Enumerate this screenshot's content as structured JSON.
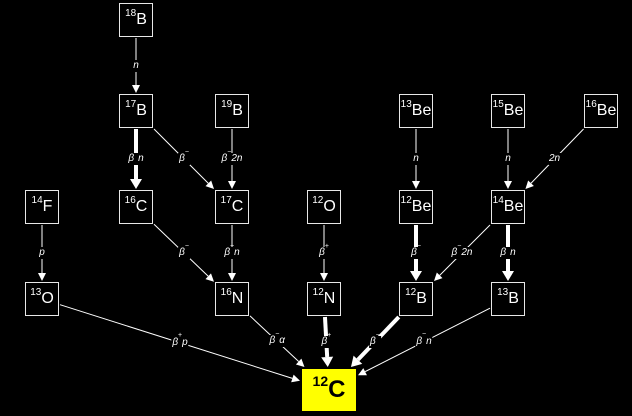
{
  "nodes": {
    "b18": {
      "mass": "18",
      "el": "B"
    },
    "b17": {
      "mass": "17",
      "el": "B"
    },
    "b19": {
      "mass": "19",
      "el": "B"
    },
    "be13": {
      "mass": "13",
      "el": "Be"
    },
    "be15": {
      "mass": "15",
      "el": "Be"
    },
    "be16": {
      "mass": "16",
      "el": "Be"
    },
    "f14": {
      "mass": "14",
      "el": "F"
    },
    "c16": {
      "mass": "16",
      "el": "C"
    },
    "c17": {
      "mass": "17",
      "el": "C"
    },
    "o12": {
      "mass": "12",
      "el": "O"
    },
    "be12": {
      "mass": "12",
      "el": "Be"
    },
    "be14": {
      "mass": "14",
      "el": "Be"
    },
    "o13": {
      "mass": "13",
      "el": "O"
    },
    "n16": {
      "mass": "16",
      "el": "N"
    },
    "n12": {
      "mass": "12",
      "el": "N"
    },
    "b12": {
      "mass": "12",
      "el": "B"
    },
    "b13": {
      "mass": "13",
      "el": "B"
    },
    "c12": {
      "mass": "12",
      "el": "C"
    }
  },
  "edges": [
    {
      "from": "b18",
      "to": "b17",
      "label": "n",
      "strength": "thin"
    },
    {
      "from": "b17",
      "to": "c16",
      "label": "β",
      "sup": "−",
      "rest": "n",
      "strength": "thick"
    },
    {
      "from": "b17",
      "to": "c17",
      "label": "β",
      "sup": "−",
      "rest": "",
      "strength": "thin"
    },
    {
      "from": "b19",
      "to": "c17",
      "label": "β",
      "sup": "−",
      "rest": "2n",
      "strength": "thin"
    },
    {
      "from": "be13",
      "to": "be12",
      "label": "n",
      "strength": "thin"
    },
    {
      "from": "be15",
      "to": "be14",
      "label": "n",
      "strength": "thin"
    },
    {
      "from": "be16",
      "to": "be14",
      "label": "2n",
      "strength": "thin"
    },
    {
      "from": "f14",
      "to": "o13",
      "label": "p",
      "strength": "thin"
    },
    {
      "from": "c16",
      "to": "n16",
      "label": "β",
      "sup": "−",
      "rest": "",
      "strength": "thin"
    },
    {
      "from": "c17",
      "to": "n16",
      "label": "β",
      "sup": "−",
      "rest": "n",
      "strength": "thin"
    },
    {
      "from": "o12",
      "to": "n12",
      "label": "β",
      "sup": "+",
      "rest": "",
      "strength": "thin"
    },
    {
      "from": "be12",
      "to": "b12",
      "label": "β",
      "sup": "−",
      "rest": "",
      "strength": "thick"
    },
    {
      "from": "be14",
      "to": "b12",
      "label": "β",
      "sup": "−",
      "rest": "2n",
      "strength": "thin"
    },
    {
      "from": "be14",
      "to": "b13",
      "label": "β",
      "sup": "−",
      "rest": "n",
      "strength": "thick"
    },
    {
      "from": "o13",
      "to": "c12",
      "label": "β",
      "sup": "+",
      "rest": "p",
      "strength": "thin"
    },
    {
      "from": "n16",
      "to": "c12",
      "label": "β",
      "sup": "−",
      "rest": "α",
      "strength": "thin"
    },
    {
      "from": "n12",
      "to": "c12",
      "label": "β",
      "sup": "+",
      "rest": "",
      "strength": "thick"
    },
    {
      "from": "b12",
      "to": "c12",
      "label": "β",
      "sup": "−",
      "rest": "",
      "strength": "thick"
    },
    {
      "from": "b13",
      "to": "c12",
      "label": "β",
      "sup": "−",
      "rest": "n",
      "strength": "thin"
    }
  ],
  "colors": {
    "background": "#000000",
    "line": "#ffffff",
    "target_fill": "#ffff00",
    "target_text": "#000000"
  }
}
